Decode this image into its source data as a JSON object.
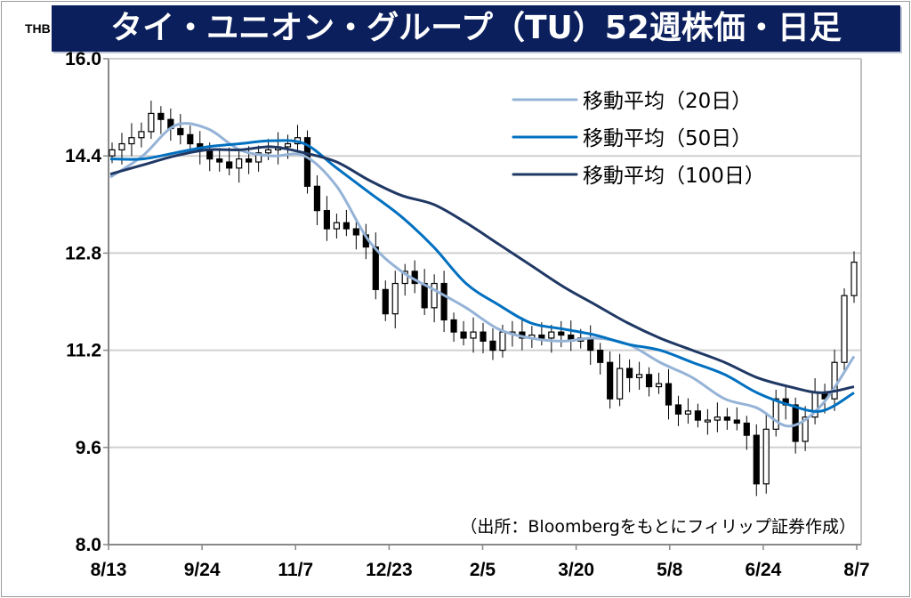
{
  "title": "タイ・ユニオン・グループ（TU）52週株価・日足",
  "chart_data": {
    "type": "candlestick-line",
    "title": "タイ・ユニオン・グループ（TU）52週株価・日足",
    "ylabel": "THB",
    "ylim": [
      8.0,
      16.0
    ],
    "yticks": [
      "8.0",
      "9.6",
      "11.2",
      "12.8",
      "14.4",
      "16.0"
    ],
    "xticks": [
      "8/13",
      "9/24",
      "11/7",
      "12/23",
      "2/5",
      "3/20",
      "5/8",
      "6/24",
      "8/7"
    ],
    "grid": true,
    "legend_position": "top-right",
    "source_note": "（出所：Bloombergをもとにフィリップ証券作成）",
    "closes": [
      14.5,
      14.6,
      14.7,
      14.8,
      15.1,
      15.0,
      14.85,
      14.75,
      14.6,
      14.5,
      14.35,
      14.3,
      14.2,
      14.35,
      14.3,
      14.45,
      14.5,
      14.55,
      14.6,
      14.7,
      13.9,
      13.5,
      13.2,
      13.3,
      13.2,
      13.1,
      12.9,
      12.2,
      11.8,
      12.3,
      12.5,
      12.3,
      11.9,
      12.3,
      11.7,
      11.5,
      11.4,
      11.5,
      11.35,
      11.2,
      11.5,
      11.5,
      11.4,
      11.45,
      11.4,
      11.5,
      11.45,
      11.35,
      11.4,
      11.2,
      11.0,
      10.4,
      10.9,
      10.75,
      10.8,
      10.6,
      10.65,
      10.3,
      10.15,
      10.2,
      10.05,
      10.05,
      10.1,
      10.05,
      10.0,
      9.8,
      9.0,
      9.9,
      10.4,
      10.3,
      9.7,
      10.1,
      10.5,
      10.4,
      11.0,
      12.1,
      12.65
    ],
    "series": [
      {
        "name": "移動平均（20日）",
        "color": "#95b3d7",
        "values": [
          14.05,
          14.4,
          14.9,
          14.85,
          14.5,
          14.4,
          14.4,
          13.9,
          13.0,
          12.5,
          12.2,
          11.9,
          11.55,
          11.4,
          11.35,
          11.4,
          11.3,
          11.0,
          10.75,
          10.4,
          10.25,
          9.95,
          10.3,
          11.1
        ]
      },
      {
        "name": "移動平均（50日）",
        "color": "#0070c0",
        "values": [
          14.35,
          14.35,
          14.45,
          14.55,
          14.6,
          14.65,
          14.6,
          14.2,
          13.8,
          13.4,
          12.9,
          12.3,
          11.95,
          11.65,
          11.55,
          11.45,
          11.3,
          11.2,
          11.0,
          10.8,
          10.5,
          10.3,
          10.2,
          10.5
        ]
      },
      {
        "name": "移動平均（100日）",
        "color": "#1f3864",
        "values": [
          14.1,
          14.25,
          14.4,
          14.5,
          14.5,
          14.55,
          14.45,
          14.3,
          14.0,
          13.75,
          13.6,
          13.3,
          12.95,
          12.6,
          12.25,
          11.95,
          11.65,
          11.4,
          11.2,
          11.0,
          10.75,
          10.6,
          10.5,
          10.6
        ]
      }
    ]
  }
}
